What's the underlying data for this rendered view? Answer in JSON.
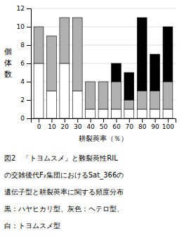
{
  "chart_data": {
    "type": "bar",
    "stacked": true,
    "grid": true,
    "x": [
      0,
      10,
      20,
      30,
      40,
      50,
      60,
      70,
      80,
      90,
      100
    ],
    "series": [
      {
        "color": "#ffffff",
        "values": [
          6,
          3,
          6,
          3,
          1,
          1,
          1,
          1,
          1,
          1,
          1
        ]
      },
      {
        "color": "#b0b0b0",
        "values": [
          4,
          6,
          5,
          8,
          3,
          3,
          3,
          1,
          2,
          2,
          3
        ]
      },
      {
        "color": "#000000",
        "values": [
          0,
          0,
          0,
          0,
          0,
          0,
          2,
          3,
          8,
          4,
          6
        ]
      }
    ],
    "xlabel": "耕裂莢率（％）",
    "ylabel": "個体数",
    "xlim": [
      -6,
      106
    ],
    "xticks": [
      0,
      10,
      20,
      30,
      40,
      50,
      60,
      70,
      80,
      90,
      100
    ],
    "ylim": [
      0,
      12
    ],
    "yticks": [
      0,
      2,
      4,
      6,
      8,
      10,
      12
    ],
    "annotations": [
      "図2　「トヨムスメ」と難裂莢性RIL",
      "の交雑後代F₂集団におけるSat_366の",
      "遺伝子型と耕裂莢率に関する頻度分布",
      "黒：ハヤヒカリ型、灰色：ヘテロ型、",
      "白：トヨムスメ型"
    ]
  }
}
